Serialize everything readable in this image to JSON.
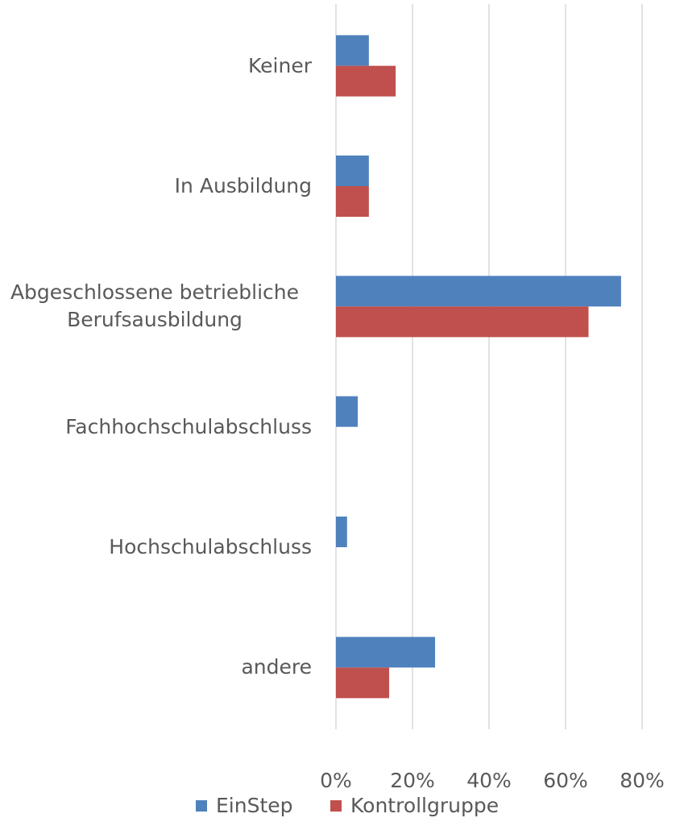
{
  "chart_data": {
    "type": "barh",
    "categories": [
      "Keiner",
      "In Ausbildung",
      "Abgeschlossene betriebliche Berufsausbildung",
      "Fachhochschulabschluss",
      "Hochschulabschluss",
      "andere"
    ],
    "series": [
      {
        "name": "EinStep",
        "color": "#4f81bd",
        "values": [
          8.6,
          8.6,
          74.5,
          5.7,
          2.9,
          25.9
        ]
      },
      {
        "name": "Kontrollgruppe",
        "color": "#c0504d",
        "values": [
          15.6,
          8.6,
          66,
          0,
          0,
          13.9
        ]
      }
    ],
    "xlim": [
      0,
      80
    ],
    "xticks": [
      {
        "value": 0,
        "label": "0%"
      },
      {
        "value": 20,
        "label": "20%"
      },
      {
        "value": 40,
        "label": "40%"
      },
      {
        "value": 60,
        "label": "60%"
      },
      {
        "value": 80,
        "label": "80%"
      }
    ],
    "grid": true,
    "legend": "bottom"
  }
}
